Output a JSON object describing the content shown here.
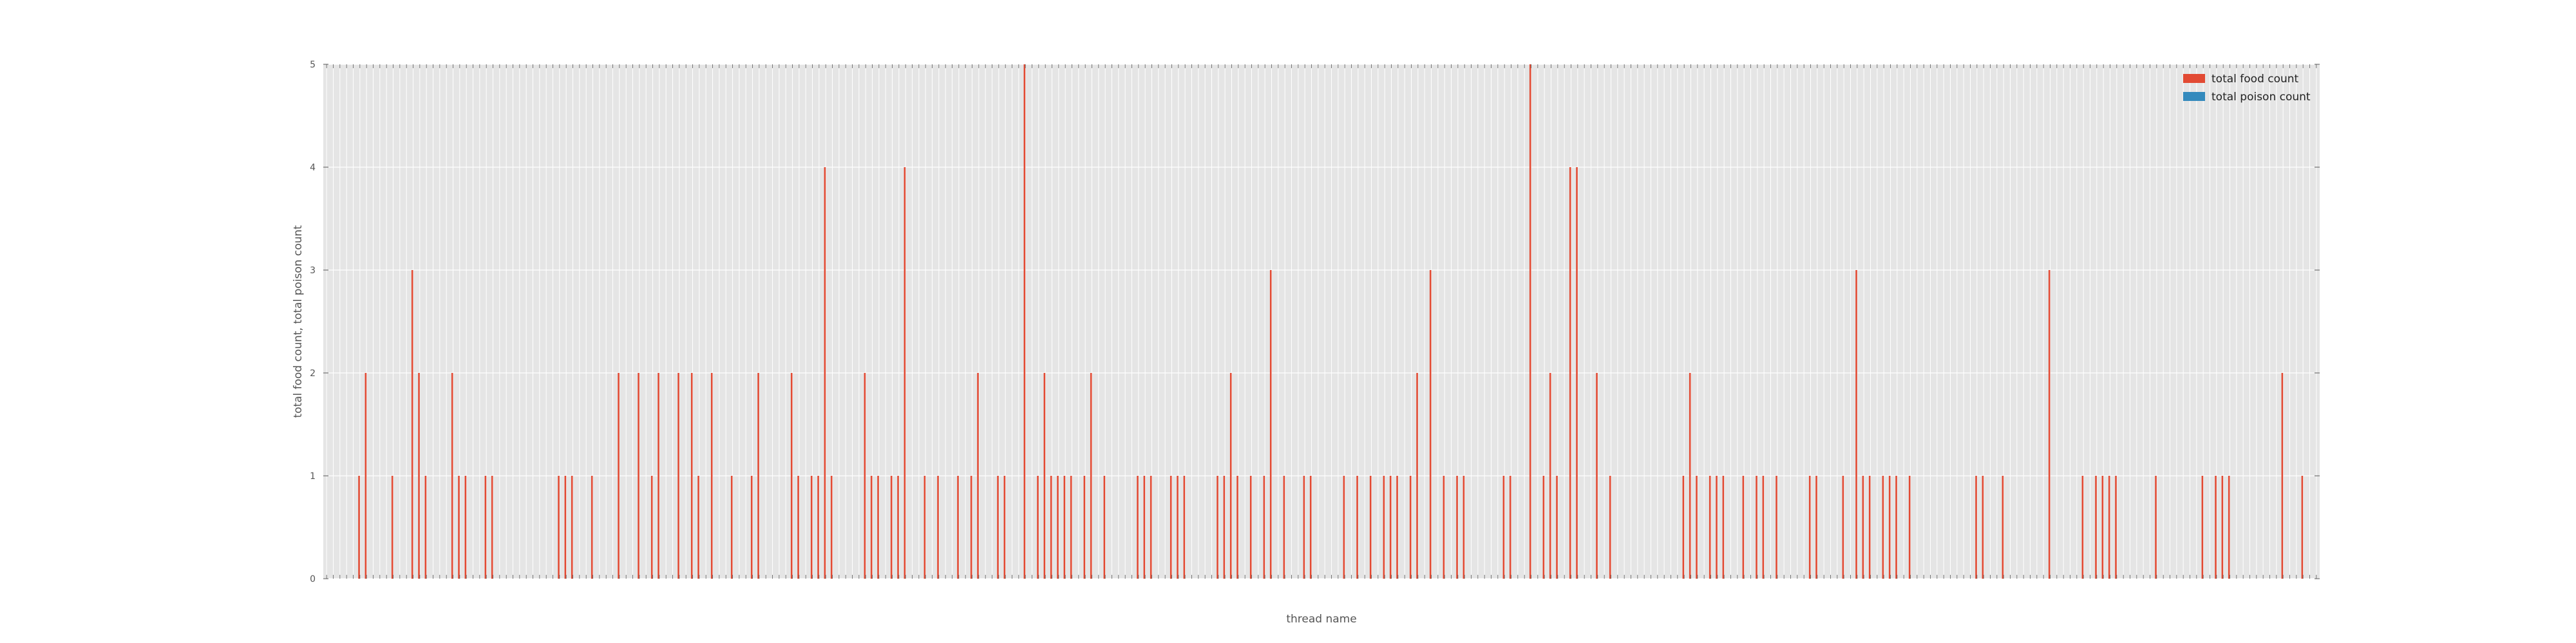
{
  "chart_data": {
    "type": "bar",
    "xlabel": "thread name",
    "ylabel": "total food count, total poison count",
    "ylim": [
      0,
      5
    ],
    "yticks": [
      0,
      1,
      2,
      3,
      4,
      5
    ],
    "grid": true,
    "legend_position": "top-right",
    "category_count": 300,
    "series": [
      {
        "name": "total food count",
        "color": "#E24A33",
        "values": [
          0,
          0,
          0,
          0,
          0,
          1,
          2,
          0,
          0,
          0,
          1,
          0,
          0,
          3,
          2,
          1,
          0,
          0,
          0,
          2,
          1,
          1,
          0,
          0,
          1,
          1,
          0,
          0,
          0,
          0,
          0,
          0,
          0,
          0,
          0,
          1,
          1,
          1,
          0,
          0,
          1,
          0,
          0,
          0,
          2,
          0,
          0,
          2,
          0,
          1,
          2,
          0,
          0,
          2,
          0,
          2,
          1,
          0,
          2,
          0,
          0,
          1,
          0,
          0,
          1,
          2,
          0,
          0,
          0,
          0,
          2,
          1,
          0,
          1,
          1,
          4,
          1,
          0,
          0,
          0,
          0,
          2,
          1,
          1,
          0,
          1,
          1,
          4,
          0,
          0,
          1,
          0,
          1,
          0,
          0,
          1,
          0,
          1,
          2,
          0,
          0,
          1,
          1,
          0,
          0,
          5,
          0,
          1,
          2,
          1,
          1,
          1,
          1,
          0,
          1,
          2,
          0,
          1,
          0,
          0,
          0,
          0,
          1,
          1,
          1,
          0,
          0,
          1,
          1,
          1,
          0,
          0,
          0,
          0,
          1,
          1,
          2,
          1,
          0,
          1,
          0,
          1,
          3,
          0,
          1,
          0,
          0,
          1,
          1,
          0,
          0,
          0,
          0,
          1,
          0,
          1,
          0,
          1,
          0,
          1,
          1,
          1,
          0,
          1,
          2,
          0,
          3,
          0,
          1,
          0,
          1,
          1,
          0,
          0,
          0,
          0,
          0,
          1,
          1,
          0,
          0,
          5,
          0,
          1,
          2,
          1,
          0,
          4,
          4,
          0,
          0,
          2,
          0,
          1,
          0,
          0,
          0,
          0,
          0,
          0,
          0,
          0,
          0,
          0,
          1,
          2,
          1,
          0,
          1,
          1,
          1,
          0,
          0,
          1,
          0,
          1,
          1,
          0,
          1,
          0,
          0,
          0,
          0,
          1,
          1,
          0,
          0,
          0,
          1,
          0,
          3,
          1,
          1,
          0,
          1,
          1,
          1,
          0,
          1,
          0,
          0,
          0,
          0,
          0,
          0,
          0,
          0,
          0,
          1,
          1,
          0,
          0,
          1,
          0,
          0,
          0,
          0,
          0,
          0,
          3,
          0,
          0,
          0,
          0,
          1,
          0,
          1,
          1,
          1,
          1,
          0,
          0,
          0,
          0,
          0,
          1,
          0,
          0,
          0,
          0,
          0,
          0,
          1,
          0,
          1,
          1,
          1,
          0,
          0,
          0,
          0,
          0,
          0,
          0,
          2,
          0,
          0,
          1,
          0,
          0,
          0,
          0
        ]
      },
      {
        "name": "total poison count",
        "color": "#348ABD",
        "values": [
          0,
          0,
          0,
          0,
          0,
          0,
          0,
          0,
          0,
          0,
          0,
          0,
          0,
          0,
          0,
          0,
          0,
          0,
          0,
          0,
          0,
          0,
          0,
          0,
          0,
          0,
          0,
          0,
          0,
          0,
          0,
          0,
          0,
          0,
          0,
          0,
          0,
          0,
          0,
          0,
          0,
          0,
          0,
          0,
          0,
          0,
          0,
          0,
          0,
          0,
          0,
          0,
          0,
          0,
          0,
          0,
          0,
          0,
          0,
          0,
          0,
          0,
          0,
          0,
          0,
          0,
          0,
          0,
          0,
          0,
          0,
          0,
          0,
          0,
          0,
          0,
          0,
          0,
          0,
          0,
          0,
          0,
          0,
          0,
          0,
          0,
          0,
          0,
          0,
          0,
          0,
          0,
          0,
          0,
          0,
          0,
          0,
          0,
          0,
          0,
          0,
          0,
          0,
          0,
          0,
          0,
          0,
          0,
          0,
          0,
          0,
          0,
          0,
          0,
          0,
          0,
          0,
          0,
          0,
          0,
          0,
          0,
          0,
          0,
          0,
          0,
          0,
          0,
          0,
          0,
          0,
          0,
          0,
          0,
          0,
          0,
          0,
          0,
          0,
          0,
          0,
          0,
          0,
          0,
          0,
          0,
          0,
          0,
          0,
          0,
          0,
          0,
          0,
          0,
          0,
          0,
          0,
          0,
          0,
          0,
          0,
          0,
          0,
          0,
          0,
          0,
          0,
          0,
          0,
          0,
          0,
          0,
          0,
          0,
          0,
          0,
          0,
          0,
          0,
          0,
          0,
          0,
          0,
          0,
          0,
          0,
          0,
          0,
          0,
          0,
          0,
          0,
          0,
          0,
          0,
          0,
          0,
          0,
          0,
          0,
          0,
          0,
          0,
          0,
          0,
          0,
          0,
          0,
          0,
          0,
          0,
          0,
          0,
          0,
          0,
          0,
          0,
          0,
          0,
          0,
          0,
          0,
          0,
          0,
          0,
          0,
          0,
          0,
          0,
          0,
          0,
          0,
          0,
          0,
          0,
          0,
          0,
          0,
          0,
          0,
          0,
          0,
          0,
          0,
          0,
          0,
          0,
          0,
          0,
          0,
          0,
          0,
          0,
          0,
          0,
          0,
          0,
          0,
          0,
          0,
          0,
          0,
          0,
          0,
          0,
          0,
          0,
          0,
          0,
          0,
          0,
          0,
          0,
          0,
          0,
          0,
          0,
          0,
          0,
          0,
          0,
          0,
          0,
          0,
          0,
          0,
          0,
          0,
          0,
          0,
          0,
          0,
          0,
          0,
          0,
          0,
          0,
          0,
          0,
          0,
          0,
          0,
          0,
          0,
          0,
          0,
          0,
          0,
          0
        ]
      }
    ]
  }
}
